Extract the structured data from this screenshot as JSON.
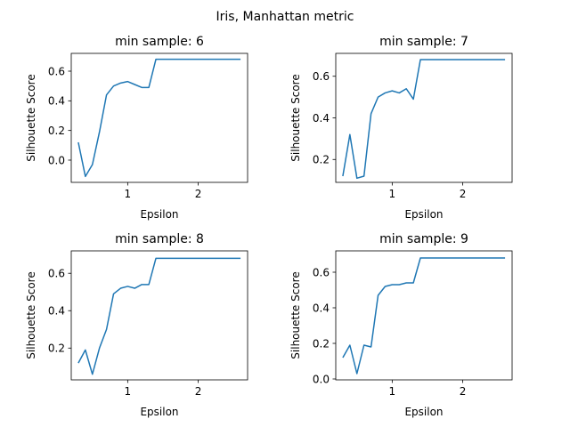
{
  "suptitle": "Iris, Manhattan metric",
  "chart_data": [
    {
      "type": "line",
      "title": "min sample: 6",
      "xlabel": "Epsilon",
      "ylabel": "Silhouette Score",
      "xlim": [
        0.2,
        2.7
      ],
      "ylim": [
        -0.15,
        0.72
      ],
      "xticks": [
        1,
        2
      ],
      "yticks": [
        0.0,
        0.2,
        0.4,
        0.6
      ],
      "ytick_labels": [
        "0.0",
        "0.2",
        "0.4",
        "0.6"
      ],
      "grid": false,
      "color": "#1f77b4",
      "x": [
        0.3,
        0.4,
        0.5,
        0.6,
        0.7,
        0.8,
        0.9,
        1.0,
        1.1,
        1.2,
        1.3,
        1.4,
        1.5,
        1.6,
        1.7,
        1.8,
        1.9,
        2.0,
        2.1,
        2.2,
        2.3,
        2.4,
        2.5,
        2.6
      ],
      "values": [
        0.12,
        -0.11,
        -0.03,
        0.19,
        0.44,
        0.5,
        0.52,
        0.53,
        0.51,
        0.49,
        0.49,
        0.68,
        0.68,
        0.68,
        0.68,
        0.68,
        0.68,
        0.68,
        0.68,
        0.68,
        0.68,
        0.68,
        0.68,
        0.68
      ]
    },
    {
      "type": "line",
      "title": "min sample: 7",
      "xlabel": "Epsilon",
      "ylabel": "Silhouette Score",
      "xlim": [
        0.2,
        2.7
      ],
      "ylim": [
        0.09,
        0.71
      ],
      "xticks": [
        1,
        2
      ],
      "yticks": [
        0.2,
        0.4,
        0.6
      ],
      "ytick_labels": [
        "0.2",
        "0.4",
        "0.6"
      ],
      "grid": false,
      "color": "#1f77b4",
      "x": [
        0.3,
        0.4,
        0.5,
        0.6,
        0.7,
        0.8,
        0.9,
        1.0,
        1.1,
        1.2,
        1.3,
        1.4,
        1.5,
        1.6,
        1.7,
        1.8,
        1.9,
        2.0,
        2.1,
        2.2,
        2.3,
        2.4,
        2.5,
        2.6
      ],
      "values": [
        0.12,
        0.32,
        0.11,
        0.12,
        0.42,
        0.5,
        0.52,
        0.53,
        0.52,
        0.54,
        0.49,
        0.68,
        0.68,
        0.68,
        0.68,
        0.68,
        0.68,
        0.68,
        0.68,
        0.68,
        0.68,
        0.68,
        0.68,
        0.68
      ]
    },
    {
      "type": "line",
      "title": "min sample: 8",
      "xlabel": "Epsilon",
      "ylabel": "Silhouette Score",
      "xlim": [
        0.2,
        2.7
      ],
      "ylim": [
        0.03,
        0.72
      ],
      "xticks": [
        1,
        2
      ],
      "yticks": [
        0.2,
        0.4,
        0.6
      ],
      "ytick_labels": [
        "0.2",
        "0.4",
        "0.6"
      ],
      "grid": false,
      "color": "#1f77b4",
      "x": [
        0.3,
        0.4,
        0.5,
        0.6,
        0.7,
        0.8,
        0.9,
        1.0,
        1.1,
        1.2,
        1.3,
        1.4,
        1.5,
        1.6,
        1.7,
        1.8,
        1.9,
        2.0,
        2.1,
        2.2,
        2.3,
        2.4,
        2.5,
        2.6
      ],
      "values": [
        0.12,
        0.19,
        0.06,
        0.2,
        0.3,
        0.49,
        0.52,
        0.53,
        0.52,
        0.54,
        0.54,
        0.68,
        0.68,
        0.68,
        0.68,
        0.68,
        0.68,
        0.68,
        0.68,
        0.68,
        0.68,
        0.68,
        0.68,
        0.68
      ]
    },
    {
      "type": "line",
      "title": "min sample: 9",
      "xlabel": "Epsilon",
      "ylabel": "Silhouette Score",
      "xlim": [
        0.2,
        2.7
      ],
      "ylim": [
        -0.005,
        0.72
      ],
      "xticks": [
        1,
        2
      ],
      "yticks": [
        0.0,
        0.2,
        0.4,
        0.6
      ],
      "ytick_labels": [
        "0.0",
        "0.2",
        "0.4",
        "0.6"
      ],
      "grid": false,
      "color": "#1f77b4",
      "x": [
        0.3,
        0.4,
        0.5,
        0.6,
        0.7,
        0.8,
        0.9,
        1.0,
        1.1,
        1.2,
        1.3,
        1.4,
        1.5,
        1.6,
        1.7,
        1.8,
        1.9,
        2.0,
        2.1,
        2.2,
        2.3,
        2.4,
        2.5,
        2.6
      ],
      "values": [
        0.12,
        0.19,
        0.03,
        0.19,
        0.18,
        0.47,
        0.52,
        0.53,
        0.53,
        0.54,
        0.54,
        0.68,
        0.68,
        0.68,
        0.68,
        0.68,
        0.68,
        0.68,
        0.68,
        0.68,
        0.68,
        0.68,
        0.68,
        0.68
      ]
    }
  ]
}
